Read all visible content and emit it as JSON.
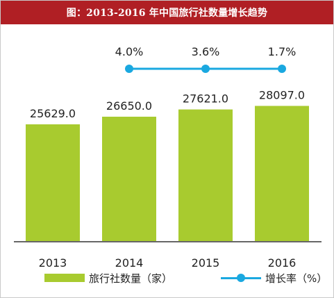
{
  "title": "图：2013-2016 年中国旅行社数量增长趋势",
  "colors": {
    "title_bg": "#b01f24",
    "bar": "#a8cb2f",
    "line": "#1aa8e0",
    "axis": "#333333",
    "text": "#222222"
  },
  "legend": {
    "bar_label": "旅行社数量（家）",
    "line_label": "增长率（%）"
  },
  "chart_data": {
    "type": "bar",
    "title": "图：2013-2016 年中国旅行社数量增长趋势",
    "categories": [
      "2013",
      "2014",
      "2015",
      "2016"
    ],
    "series": [
      {
        "name": "旅行社数量（家）",
        "type": "bar",
        "values": [
          25629.0,
          26650.0,
          27621.0,
          28097.0
        ],
        "labels": [
          "25629.0",
          "26650.0",
          "27621.0",
          "28097.0"
        ]
      },
      {
        "name": "增长率（%）",
        "type": "line",
        "values": [
          null,
          4.0,
          3.6,
          1.7
        ],
        "labels": [
          "",
          "4.0%",
          "3.6%",
          "1.7%"
        ]
      }
    ],
    "xlabel": "",
    "ylabel": "",
    "grid": false,
    "legend_position": "bottom"
  }
}
